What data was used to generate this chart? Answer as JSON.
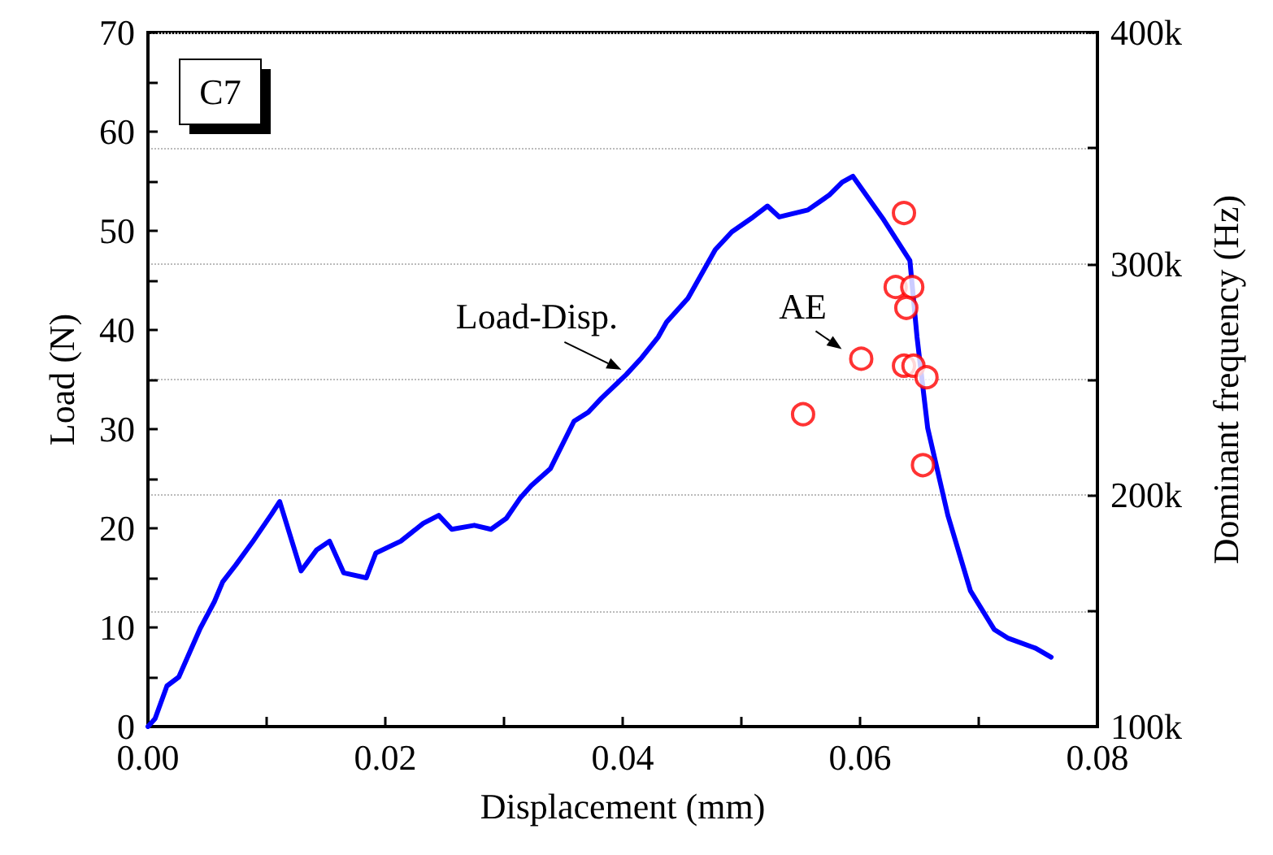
{
  "chart_data": {
    "type": "line",
    "xlabel": "Displacement (mm)",
    "ylabel": "Load (N)",
    "y2label": "Dominant frequency (Hz)",
    "xlim": [
      0,
      0.08
    ],
    "xticks": [
      {
        "value": 0,
        "label": "0.00"
      },
      {
        "value": 0.01,
        "label": null
      },
      {
        "value": 0.02,
        "label": "0.02"
      },
      {
        "value": 0.03,
        "label": null
      },
      {
        "value": 0.04,
        "label": "0.04"
      },
      {
        "value": 0.05,
        "label": null
      },
      {
        "value": 0.06,
        "label": "0.06"
      },
      {
        "value": 0.07,
        "label": null
      },
      {
        "value": 0.08,
        "label": "0.08"
      }
    ],
    "ylim": [
      0,
      70
    ],
    "yticks": [
      0,
      {
        "value": 5,
        "label": null
      },
      10,
      {
        "value": 15,
        "label": null
      },
      20,
      {
        "value": 25,
        "label": null
      },
      30,
      {
        "value": 35,
        "label": null
      },
      40,
      {
        "value": 45,
        "label": null
      },
      50,
      {
        "value": 55,
        "label": null
      },
      60,
      {
        "value": 65,
        "label": null
      },
      70
    ],
    "y2lim": [
      100000,
      400000
    ],
    "y2ticks": [
      {
        "value": 100000,
        "label": "100k"
      },
      {
        "value": 150000,
        "label": null
      },
      {
        "value": 200000,
        "label": "200k"
      },
      {
        "value": 250000,
        "label": null
      },
      {
        "value": 300000,
        "label": "300k"
      },
      {
        "value": 350000,
        "label": null
      },
      {
        "value": 400000,
        "label": "400k"
      }
    ],
    "grid": "y",
    "series": [
      {
        "color": "#0000ff",
        "marker": "none",
        "line_style": "solid",
        "x": [
          0,
          0.0006,
          0.0016,
          0.0026,
          0.0044,
          0.0056,
          0.0063,
          0.0074,
          0.0088,
          0.0104,
          0.0111,
          0.0129,
          0.0142,
          0.0153,
          0.0165,
          0.0184,
          0.0192,
          0.0213,
          0.0232,
          0.0245,
          0.0256,
          0.0275,
          0.0289,
          0.0302,
          0.0314,
          0.0323,
          0.0339,
          0.0359,
          0.0371,
          0.0382,
          0.0403,
          0.0416,
          0.043,
          0.0437,
          0.0455,
          0.0478,
          0.0492,
          0.051,
          0.0522,
          0.0532,
          0.0556,
          0.0574,
          0.0585,
          0.0594,
          0.062,
          0.0642,
          0.0648,
          0.0657,
          0.0674,
          0.0693,
          0.0713,
          0.0725,
          0.0748,
          0.0761
        ],
        "values": [
          0,
          0.8,
          4.1,
          5.0,
          9.9,
          12.6,
          14.6,
          16.3,
          18.6,
          21.4,
          22.7,
          15.7,
          17.8,
          18.7,
          15.5,
          15.0,
          17.5,
          18.7,
          20.5,
          21.3,
          19.9,
          20.3,
          19.9,
          21.0,
          23.1,
          24.3,
          26.0,
          30.8,
          31.7,
          33.1,
          35.5,
          37.2,
          39.3,
          40.8,
          43.2,
          48.1,
          49.9,
          51.4,
          52.5,
          51.4,
          52.1,
          53.6,
          54.9,
          55.5,
          51.1,
          47.0,
          39.3,
          30.1,
          21.3,
          13.7,
          9.8,
          8.9,
          7.9,
          7.0
        ]
      },
      {
        "type": "scatter",
        "axis": "y2",
        "color": "#ff0000",
        "marker": "circle",
        "x": [
          0.0637,
          0.063,
          0.0644,
          0.0639,
          0.0601,
          0.0637,
          0.0645,
          0.0656,
          0.0552,
          0.0653
        ],
        "values": [
          322000,
          290000,
          290000,
          281000,
          259000,
          256000,
          256000,
          251000,
          235000,
          213000
        ]
      }
    ],
    "annotations": [
      "C7",
      {
        "text": "Load-Disp.",
        "x": 0.0403,
        "y": 35.5
      },
      "AE"
    ]
  }
}
